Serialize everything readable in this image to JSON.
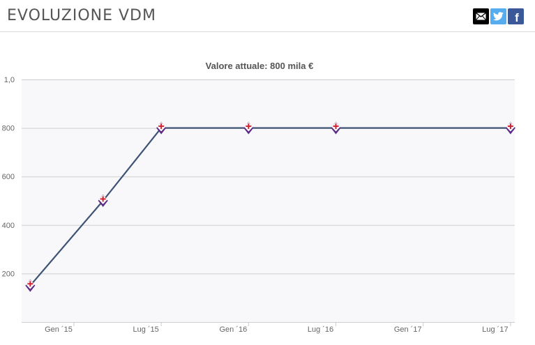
{
  "header": {
    "title": "EVOLUZIONE VDM",
    "share": [
      {
        "name": "email-share-button",
        "icon": "envelope-icon"
      },
      {
        "name": "twitter-share-button",
        "icon": "twitter-bird-icon"
      },
      {
        "name": "facebook-share-button",
        "icon": "facebook-f-icon",
        "glyph": "f"
      }
    ]
  },
  "chart_data": {
    "type": "line",
    "title": "Valore attuale: 800 mila €",
    "xlabel": "",
    "ylabel": "",
    "x_ticks": [
      "Gen ´15",
      "Lug ´15",
      "Gen ´16",
      "Lug ´16",
      "Gen ´17",
      "Lug ´17"
    ],
    "y_ticks": [
      "200",
      "400",
      "600",
      "800",
      "1,0"
    ],
    "ylim": [
      0,
      1000
    ],
    "grid": true,
    "legend": "none",
    "line_color": "#3d5375",
    "marker": "club-badge-icon",
    "series": [
      {
        "points": [
          {
            "x": "2014-10",
            "y": 150
          },
          {
            "x": "2015-03",
            "y": 500
          },
          {
            "x": "2015-07",
            "y": 800
          },
          {
            "x": "2016-01",
            "y": 800
          },
          {
            "x": "2016-07",
            "y": 800
          },
          {
            "x": "2017-07",
            "y": 800
          }
        ]
      }
    ]
  }
}
